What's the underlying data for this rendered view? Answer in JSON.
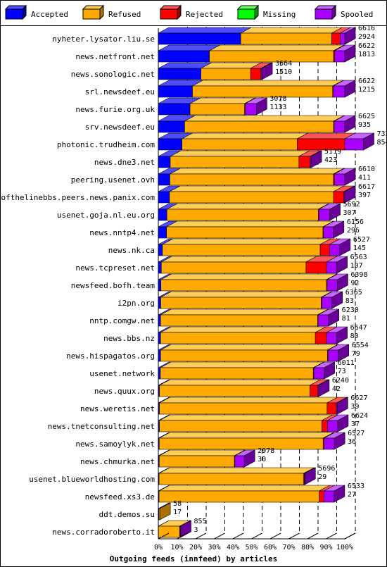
{
  "legend": [
    {
      "label": "Accepted",
      "color": "#0000ff",
      "top": "#4d4dff",
      "side": "#000099"
    },
    {
      "label": "Refused",
      "color": "#ffaa00",
      "top": "#ffcc55",
      "side": "#aa7000"
    },
    {
      "label": "Rejected",
      "color": "#ff0000",
      "top": "#ff5555",
      "side": "#990000"
    },
    {
      "label": "Missing",
      "color": "#00ff00",
      "top": "#66ff66",
      "side": "#009900"
    },
    {
      "label": "Spooled",
      "color": "#aa00ff",
      "top": "#c766ff",
      "side": "#6a0099"
    }
  ],
  "chart_data": {
    "type": "bar",
    "orientation": "horizontal",
    "stacked": true,
    "title": "Outgoing feeds (innfeed) by articles",
    "xlim": [
      0,
      100
    ],
    "x_ticks": [
      "0%",
      "10%",
      "20%",
      "30%",
      "40%",
      "50%",
      "60%",
      "70%",
      "80%",
      "90%",
      "100%"
    ],
    "grid": "vertical dashed lines at 10% steps",
    "legend_position": "top",
    "series": [
      "Accepted",
      "Refused",
      "Rejected",
      "Missing",
      "Spooled"
    ],
    "rows": [
      {
        "name": "nyheter.lysator.liu.se",
        "offered": "6616",
        "accepted": "2924",
        "segments": [
          44.2,
          48.8,
          4.5,
          0,
          2.5
        ]
      },
      {
        "name": "news.netfront.net",
        "offered": "6622",
        "accepted": "1813",
        "segments": [
          27.4,
          66.6,
          0.5,
          0,
          5.5
        ]
      },
      {
        "name": "news.sonologic.net",
        "offered": "3664",
        "accepted": "1510",
        "segments": [
          22.9,
          26.6,
          5.5,
          0,
          0.5
        ]
      },
      {
        "name": "srl.newsdeef.eu",
        "offered": "6622",
        "accepted": "1215",
        "segments": [
          18.3,
          75.2,
          0.3,
          0,
          6.2
        ]
      },
      {
        "name": "news.furie.org.uk",
        "offered": "3078",
        "accepted": "1133",
        "segments": [
          17.0,
          29.3,
          0.3,
          0,
          6.0
        ]
      },
      {
        "name": "srv.newsdeef.eu",
        "offered": "6625",
        "accepted": "935",
        "segments": [
          14.1,
          79.9,
          0.3,
          0,
          5.7
        ]
      },
      {
        "name": "photonic.trudheim.com",
        "offered": "7336",
        "accepted": "854",
        "segments": [
          12.7,
          61.8,
          25.5,
          0,
          10.0
        ]
      },
      {
        "name": "news.dne3.net",
        "offered": "5119",
        "accepted": "423",
        "segments": [
          6.4,
          69.0,
          6.0,
          0,
          0.5
        ]
      },
      {
        "name": "peering.usenet.ovh",
        "offered": "6610",
        "accepted": "411",
        "segments": [
          6.2,
          87.7,
          0.5,
          0,
          5.6
        ]
      },
      {
        "name": "endofthelinebbs.peers.news.panix.com",
        "offered": "6617",
        "accepted": "397",
        "segments": [
          6.0,
          88.0,
          5.5,
          0,
          0.5
        ]
      },
      {
        "name": "usenet.goja.nl.eu.org",
        "offered": "5692",
        "accepted": "307",
        "segments": [
          4.6,
          81.2,
          0.3,
          0,
          5.8
        ]
      },
      {
        "name": "news.nntp4.net",
        "offered": "6156",
        "accepted": "296",
        "segments": [
          4.4,
          83.9,
          0.3,
          0,
          5.3
        ]
      },
      {
        "name": "news.nk.ca",
        "offered": "6527",
        "accepted": "145",
        "segments": [
          2.2,
          84.6,
          5.0,
          0,
          5.5
        ]
      },
      {
        "name": "news.tcpreset.net",
        "offered": "6563",
        "accepted": "107",
        "segments": [
          1.6,
          77.6,
          11.0,
          0,
          5.5
        ]
      },
      {
        "name": "newsfeed.bofh.team",
        "offered": "6398",
        "accepted": "92",
        "segments": [
          1.4,
          88.8,
          0.3,
          0,
          5.5
        ]
      },
      {
        "name": "i2pn.org",
        "offered": "6365",
        "accepted": "83",
        "segments": [
          1.3,
          86.0,
          0.3,
          0,
          5.5
        ]
      },
      {
        "name": "nntp.comgw.net",
        "offered": "6230",
        "accepted": "81",
        "segments": [
          1.2,
          84.2,
          0.3,
          0,
          5.5
        ]
      },
      {
        "name": "news.bbs.nz",
        "offered": "6647",
        "accepted": "80",
        "segments": [
          1.2,
          83.0,
          6.0,
          0,
          5.5
        ]
      },
      {
        "name": "news.hispagatos.org",
        "offered": "6554",
        "accepted": "79",
        "segments": [
          1.2,
          89.5,
          0.3,
          0,
          5.5
        ]
      },
      {
        "name": "usenet.network",
        "offered": "6011",
        "accepted": "73",
        "segments": [
          1.1,
          82.0,
          0.3,
          0,
          5.5
        ]
      },
      {
        "name": "news.quux.org",
        "offered": "6240",
        "accepted": "42",
        "segments": [
          0.6,
          80.7,
          4.2,
          0,
          0.5
        ]
      },
      {
        "name": "news.weretis.net",
        "offered": "6627",
        "accepted": "39",
        "segments": [
          0.6,
          89.9,
          5.0,
          0,
          0.5
        ]
      },
      {
        "name": "news.tnetconsulting.net",
        "offered": "6624",
        "accepted": "37",
        "segments": [
          0.6,
          87.1,
          3.0,
          0,
          5.5
        ]
      },
      {
        "name": "news.samoylyk.net",
        "offered": "6527",
        "accepted": "36",
        "segments": [
          0.5,
          87.9,
          0.5,
          0,
          5.5
        ]
      },
      {
        "name": "news.chmurka.net",
        "offered": "2978",
        "accepted": "30",
        "segments": [
          0.5,
          40.3,
          0.3,
          0,
          5.0
        ]
      },
      {
        "name": "usenet.blueworldhosting.com",
        "offered": "5696",
        "accepted": "29",
        "segments": [
          0.4,
          77.6,
          0.3,
          0,
          0.3
        ]
      },
      {
        "name": "newsfeed.xs3.de",
        "offered": "6533",
        "accepted": "27",
        "segments": [
          0.4,
          85.9,
          2.5,
          0,
          5.5
        ]
      },
      {
        "name": "ddt.demos.su",
        "offered": "58",
        "accepted": "17",
        "segments": [
          0.3,
          0.5,
          0,
          0,
          0
        ]
      },
      {
        "name": "news.corradoroberto.it",
        "offered": "855",
        "accepted": "3",
        "segments": [
          0.1,
          11.4,
          0.2,
          0,
          0.2
        ]
      }
    ]
  }
}
